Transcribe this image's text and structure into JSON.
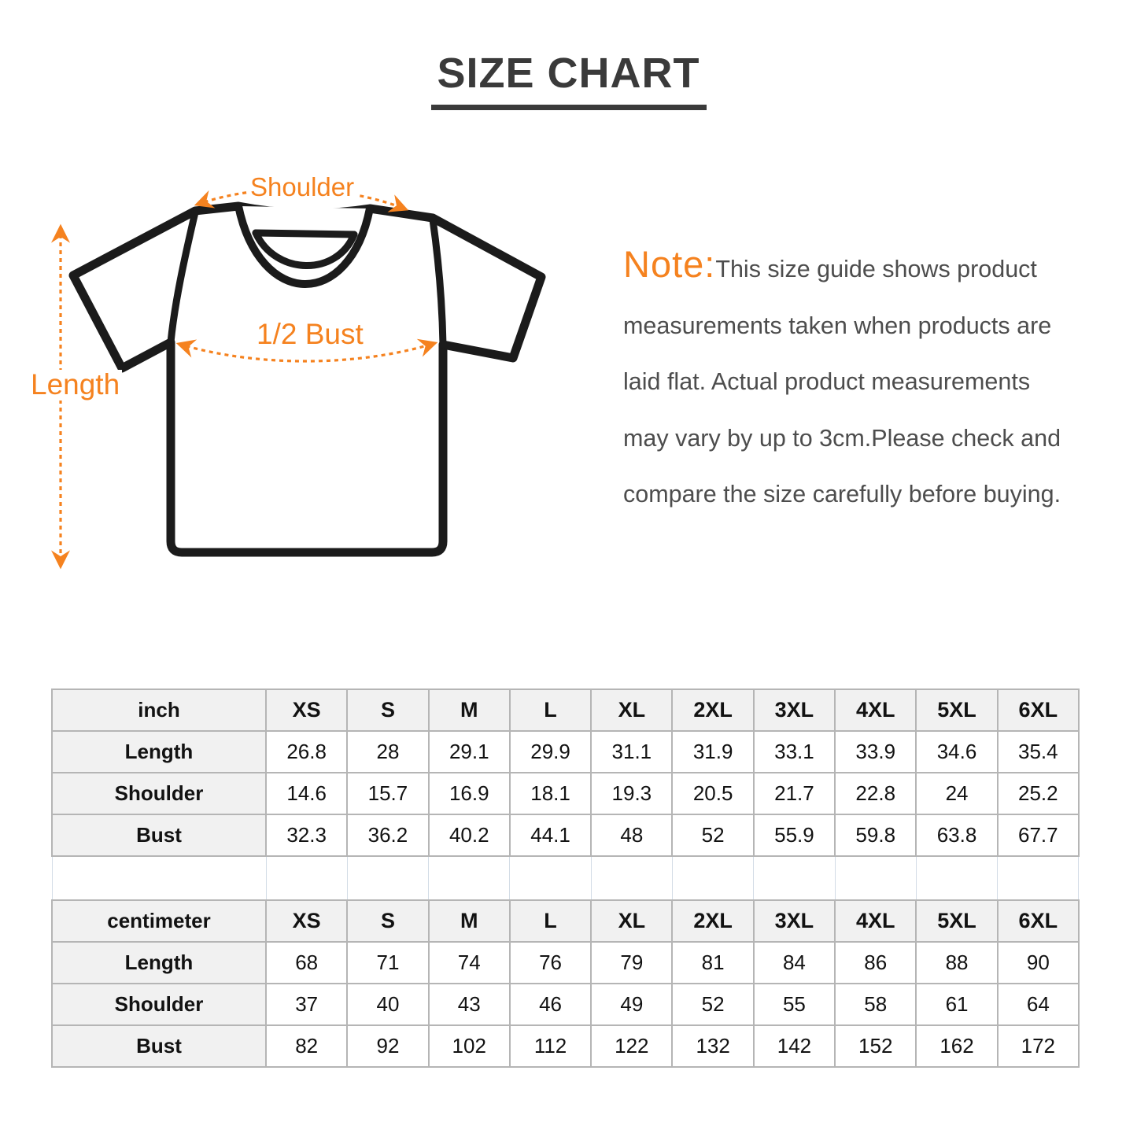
{
  "title": "SIZE CHART",
  "diagram": {
    "shoulder_label": "Shoulder",
    "bust_label": "1/2 Bust",
    "length_label": "Length",
    "accent_color": "#f5821f",
    "outline_color": "#1b1b1b"
  },
  "note": {
    "prefix": "Note:",
    "lines": [
      "This size guide shows product",
      "measurements taken when products are",
      "laid flat. Actual product measurements",
      "may vary by up to 3cm.Please check and",
      "compare the size carefully before buying."
    ]
  },
  "chart_data": [
    {
      "type": "table",
      "unit": "inch",
      "sizes": [
        "XS",
        "S",
        "M",
        "L",
        "XL",
        "2XL",
        "3XL",
        "4XL",
        "5XL",
        "6XL"
      ],
      "rows": [
        {
          "label": "Length",
          "values": [
            "26.8",
            "28",
            "29.1",
            "29.9",
            "31.1",
            "31.9",
            "33.1",
            "33.9",
            "34.6",
            "35.4"
          ]
        },
        {
          "label": "Shoulder",
          "values": [
            "14.6",
            "15.7",
            "16.9",
            "18.1",
            "19.3",
            "20.5",
            "21.7",
            "22.8",
            "24",
            "25.2"
          ]
        },
        {
          "label": "Bust",
          "values": [
            "32.3",
            "36.2",
            "40.2",
            "44.1",
            "48",
            "52",
            "55.9",
            "59.8",
            "63.8",
            "67.7"
          ]
        }
      ]
    },
    {
      "type": "table",
      "unit": "centimeter",
      "sizes": [
        "XS",
        "S",
        "M",
        "L",
        "XL",
        "2XL",
        "3XL",
        "4XL",
        "5XL",
        "6XL"
      ],
      "rows": [
        {
          "label": "Length",
          "values": [
            "68",
            "71",
            "74",
            "76",
            "79",
            "81",
            "84",
            "86",
            "88",
            "90"
          ]
        },
        {
          "label": "Shoulder",
          "values": [
            "37",
            "40",
            "43",
            "46",
            "49",
            "52",
            "55",
            "58",
            "61",
            "64"
          ]
        },
        {
          "label": "Bust",
          "values": [
            "82",
            "92",
            "102",
            "112",
            "122",
            "132",
            "142",
            "152",
            "162",
            "172"
          ]
        }
      ]
    }
  ]
}
